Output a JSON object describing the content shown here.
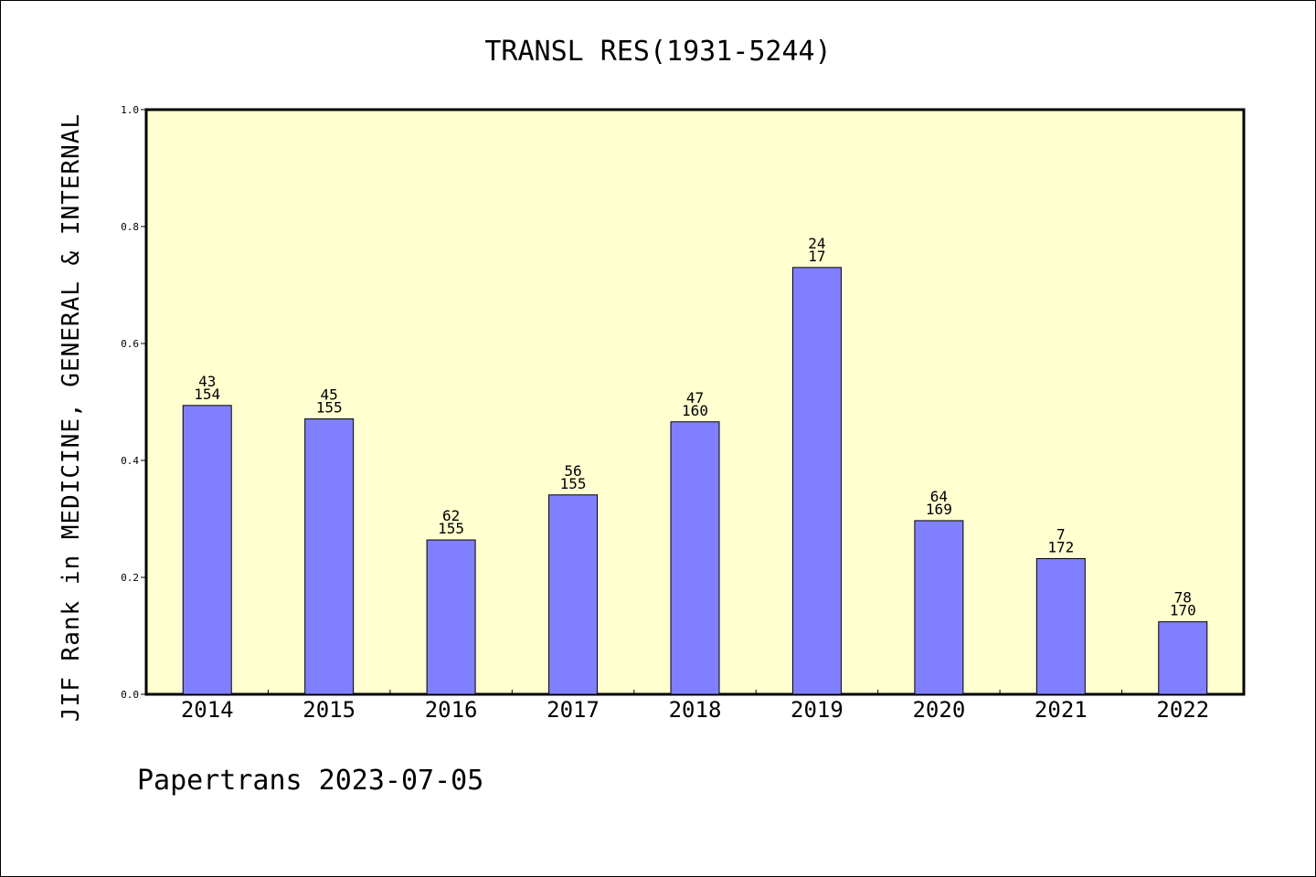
{
  "chart_data": {
    "type": "bar",
    "title": "TRANSL RES(1931-5244)",
    "xlabel": "",
    "ylabel": "JIF Rank in MEDICINE, GENERAL & INTERNAL",
    "ylim": [
      0,
      1.0
    ],
    "yticks": [
      "0.0",
      "0.2",
      "0.4",
      "0.6",
      "0.8",
      "1.0"
    ],
    "categories": [
      "2014",
      "2015",
      "2016",
      "2017",
      "2018",
      "2019",
      "2020",
      "2021",
      "2022"
    ],
    "values": [
      0.494,
      0.471,
      0.264,
      0.341,
      0.466,
      0.73,
      0.297,
      0.232,
      0.124
    ],
    "labels": [
      [
        "43",
        "154"
      ],
      [
        "45",
        "155"
      ],
      [
        "62",
        "155"
      ],
      [
        "56",
        "155"
      ],
      [
        "47",
        "160"
      ],
      [
        "24",
        "17"
      ],
      [
        "64",
        "169"
      ],
      [
        "7",
        "172"
      ],
      [
        "78",
        "170"
      ]
    ],
    "grid": false,
    "legend": "none",
    "colors": {
      "plot_bg": "#ffffd0",
      "bar": "#8080ff"
    }
  },
  "footer": "Papertrans 2023-07-05"
}
